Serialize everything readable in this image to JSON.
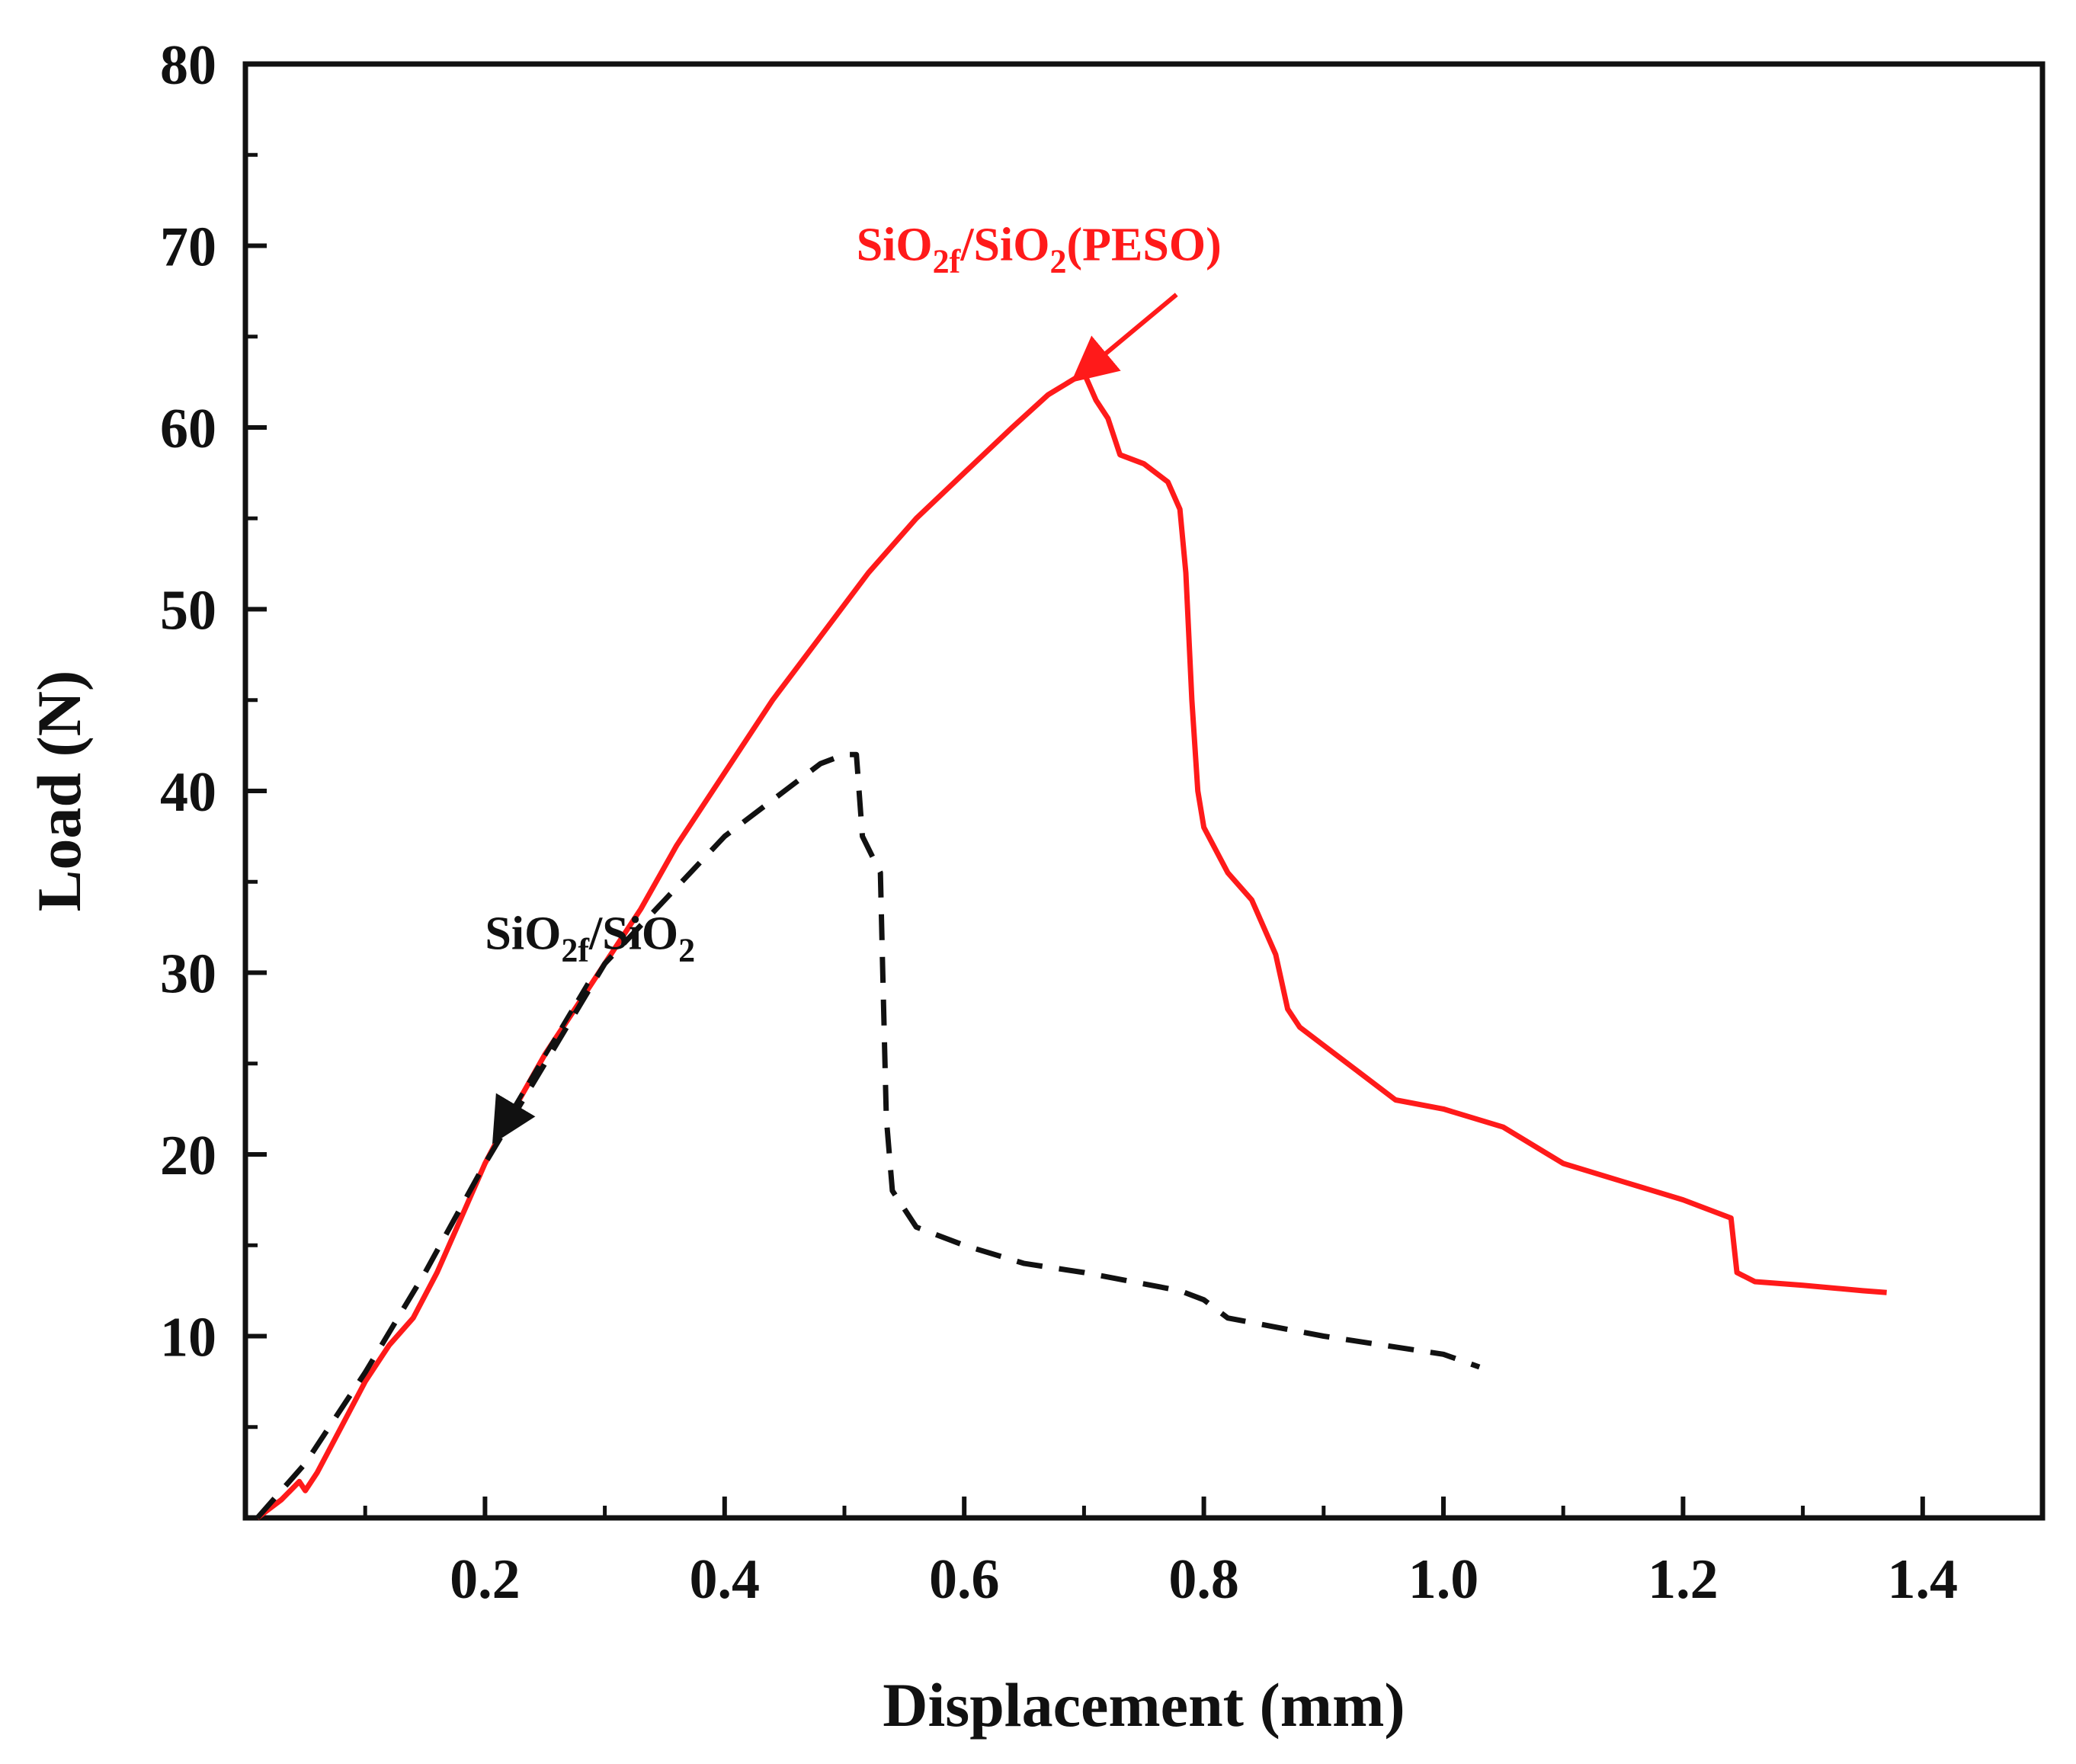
{
  "chart_data": {
    "type": "line",
    "title": "",
    "xlabel": "Displacement (mm)",
    "ylabel": "Load (N)",
    "xlim": [
      0.0,
      1.5
    ],
    "ylim": [
      0,
      80
    ],
    "x_ticks": [
      "0.2",
      "0.4",
      "0.6",
      "0.8",
      "1.0",
      "1.2",
      "1.4"
    ],
    "y_ticks": [
      "10",
      "20",
      "30",
      "40",
      "50",
      "60",
      "70",
      "80"
    ],
    "series": [
      {
        "name": "SiO2f/SiO2(PESO)",
        "label_parts": [
          "SiO",
          "2f",
          "/SiO",
          "2",
          "(PESO)"
        ],
        "color": "#ff1a1a",
        "dash": "solid",
        "points": [
          [
            0.01,
            0.0
          ],
          [
            0.03,
            1.0
          ],
          [
            0.045,
            2.0
          ],
          [
            0.05,
            1.5
          ],
          [
            0.06,
            2.5
          ],
          [
            0.08,
            5.0
          ],
          [
            0.1,
            7.5
          ],
          [
            0.12,
            9.5
          ],
          [
            0.14,
            11.0
          ],
          [
            0.16,
            13.5
          ],
          [
            0.18,
            16.5
          ],
          [
            0.2,
            19.5
          ],
          [
            0.22,
            22.0
          ],
          [
            0.25,
            25.5
          ],
          [
            0.28,
            28.5
          ],
          [
            0.3,
            30.5
          ],
          [
            0.33,
            33.5
          ],
          [
            0.36,
            37.0
          ],
          [
            0.4,
            41.0
          ],
          [
            0.44,
            45.0
          ],
          [
            0.48,
            48.5
          ],
          [
            0.52,
            52.0
          ],
          [
            0.56,
            55.0
          ],
          [
            0.6,
            57.5
          ],
          [
            0.64,
            60.0
          ],
          [
            0.67,
            61.8
          ],
          [
            0.7,
            63.0
          ],
          [
            0.71,
            61.5
          ],
          [
            0.72,
            60.5
          ],
          [
            0.73,
            58.5
          ],
          [
            0.75,
            58.0
          ],
          [
            0.77,
            57.0
          ],
          [
            0.78,
            55.5
          ],
          [
            0.785,
            52.0
          ],
          [
            0.79,
            45.0
          ],
          [
            0.795,
            40.0
          ],
          [
            0.8,
            38.0
          ],
          [
            0.82,
            35.5
          ],
          [
            0.84,
            34.0
          ],
          [
            0.86,
            31.0
          ],
          [
            0.87,
            28.0
          ],
          [
            0.88,
            27.0
          ],
          [
            0.9,
            26.0
          ],
          [
            0.93,
            24.5
          ],
          [
            0.96,
            23.0
          ],
          [
            1.0,
            22.5
          ],
          [
            1.05,
            21.5
          ],
          [
            1.1,
            19.5
          ],
          [
            1.15,
            18.5
          ],
          [
            1.2,
            17.5
          ],
          [
            1.24,
            16.5
          ],
          [
            1.245,
            13.5
          ],
          [
            1.26,
            13.0
          ],
          [
            1.3,
            12.8
          ],
          [
            1.35,
            12.5
          ],
          [
            1.37,
            12.4
          ]
        ]
      },
      {
        "name": "SiO2f/SiO2",
        "label_parts": [
          "SiO",
          "2f",
          "/SiO",
          "2",
          ""
        ],
        "color": "#111111",
        "dash": "dashed",
        "points": [
          [
            0.01,
            0.0
          ],
          [
            0.05,
            3.0
          ],
          [
            0.1,
            8.0
          ],
          [
            0.15,
            13.5
          ],
          [
            0.2,
            19.5
          ],
          [
            0.25,
            25.0
          ],
          [
            0.3,
            30.5
          ],
          [
            0.35,
            34.0
          ],
          [
            0.4,
            37.5
          ],
          [
            0.45,
            40.0
          ],
          [
            0.48,
            41.5
          ],
          [
            0.5,
            42.0
          ],
          [
            0.51,
            42.0
          ],
          [
            0.515,
            37.5
          ],
          [
            0.53,
            35.5
          ],
          [
            0.532,
            30.0
          ],
          [
            0.535,
            22.0
          ],
          [
            0.54,
            18.0
          ],
          [
            0.56,
            16.0
          ],
          [
            0.6,
            15.0
          ],
          [
            0.65,
            14.0
          ],
          [
            0.7,
            13.5
          ],
          [
            0.78,
            12.5
          ],
          [
            0.8,
            12.0
          ],
          [
            0.82,
            11.0
          ],
          [
            0.9,
            10.0
          ],
          [
            1.0,
            9.0
          ],
          [
            1.03,
            8.3
          ]
        ]
      }
    ],
    "annotations": [
      {
        "series_index": 0,
        "label_x": 0.51,
        "label_y": 69.2,
        "points_to": [
          0.695,
          62.8
        ]
      },
      {
        "series_index": 1,
        "label_x": 0.2,
        "label_y": 31.3,
        "points_to": [
          0.21,
          21.0
        ]
      }
    ]
  }
}
